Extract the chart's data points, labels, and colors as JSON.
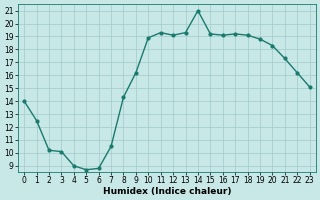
{
  "x": [
    0,
    1,
    2,
    3,
    4,
    5,
    6,
    7,
    8,
    9,
    10,
    11,
    12,
    13,
    14,
    15,
    16,
    17,
    18,
    19,
    20,
    21,
    22,
    23
  ],
  "y": [
    14.0,
    12.5,
    10.2,
    10.1,
    9.0,
    8.7,
    8.8,
    10.5,
    14.3,
    16.2,
    18.9,
    19.3,
    19.1,
    19.3,
    21.0,
    19.2,
    19.1,
    19.2,
    19.1,
    18.8,
    18.3,
    17.3,
    16.2,
    15.1
  ],
  "line_color": "#1a7a6e",
  "marker": "o",
  "markersize": 2.0,
  "linewidth": 1.0,
  "bg_color": "#c8e8e8",
  "grid_color": "#a8cece",
  "xlabel": "Humidex (Indice chaleur)",
  "xlim": [
    -0.5,
    23.5
  ],
  "ylim": [
    8.5,
    21.5
  ],
  "yticks": [
    9,
    10,
    11,
    12,
    13,
    14,
    15,
    16,
    17,
    18,
    19,
    20,
    21
  ],
  "xticks": [
    0,
    1,
    2,
    3,
    4,
    5,
    6,
    7,
    8,
    9,
    10,
    11,
    12,
    13,
    14,
    15,
    16,
    17,
    18,
    19,
    20,
    21,
    22,
    23
  ],
  "label_fontsize": 6.5,
  "tick_fontsize": 5.5
}
